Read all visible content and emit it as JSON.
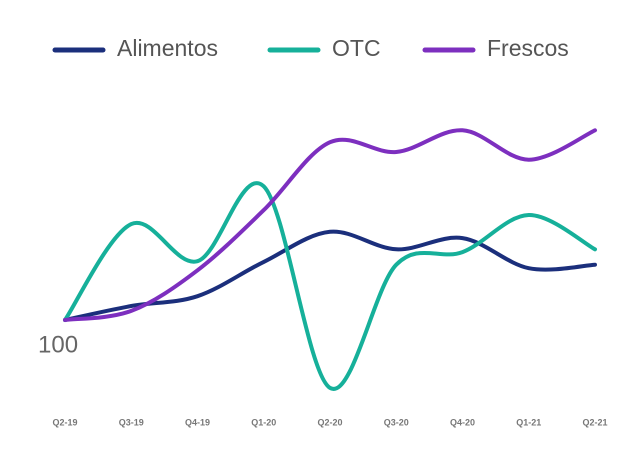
{
  "chart_data": {
    "type": "line",
    "categories": [
      "Q2-19",
      "Q3-19",
      "Q4-19",
      "Q1-20",
      "Q2-20",
      "Q3-20",
      "Q4-20",
      "Q1-21",
      "Q2-21"
    ],
    "series": [
      {
        "name": "Alimentos",
        "color": "#1b2f7c",
        "values": [
          100,
          102,
          103.4,
          108.3,
          112.6,
          110.1,
          111.7,
          107.4,
          107.9
        ]
      },
      {
        "name": "OTC",
        "color": "#16b09a",
        "values": [
          100,
          113.7,
          108.4,
          119.1,
          90.3,
          107.9,
          109.7,
          115,
          110.1
        ]
      },
      {
        "name": "Frescos",
        "color": "#7d2fbf",
        "values": [
          100,
          101.3,
          107.1,
          115.7,
          125.4,
          124,
          127.1,
          122.9,
          127.1
        ]
      }
    ],
    "ylim": [
      88,
      132
    ],
    "yticks": [
      100
    ],
    "grid": false,
    "legend": "top"
  }
}
